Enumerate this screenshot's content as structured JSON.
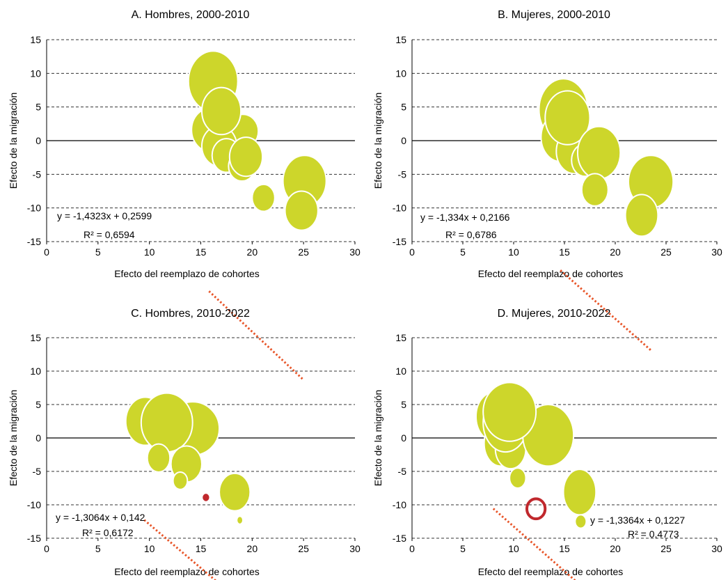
{
  "colors": {
    "bubble": "#cdd62b",
    "bubble_outline": "#ffffff",
    "trend": "#e8562a",
    "highlight": "#c0282d",
    "grid": "#333333",
    "zero_line": "#000000"
  },
  "chart_data": [
    {
      "type": "scatter",
      "title": "A. Hombres, 2000-2010",
      "xlabel": "Efecto del reemplazo de cohortes",
      "ylabel": "Efecto de la migración",
      "xlim": [
        0,
        30
      ],
      "ylim": [
        -15,
        15
      ],
      "xticks": [
        "0",
        "5",
        "10",
        "15",
        "20",
        "25",
        "30"
      ],
      "yticks": [
        "15",
        "10",
        "5",
        "0",
        "-5",
        "-10",
        "-15"
      ],
      "grid": "horizontal dashed",
      "equation": "y = -1,4323x + 0,2599",
      "r2": "R² = 0,6594",
      "trendline": {
        "slope": -1.4323,
        "intercept": 0.2599,
        "x_from": 15.8,
        "x_to": 24.9
      },
      "points": [
        {
          "x": 16.2,
          "y": 8.8,
          "rx": 2.4,
          "ry": 4.5,
          "style": "bubble"
        },
        {
          "x": 15.9,
          "y": 1.6,
          "rx": 1.8,
          "ry": 3.2,
          "style": "bubble"
        },
        {
          "x": 19.1,
          "y": 1.4,
          "rx": 1.5,
          "ry": 2.5,
          "style": "bubble"
        },
        {
          "x": 16.8,
          "y": -0.8,
          "rx": 1.7,
          "ry": 3.0,
          "style": "bubble"
        },
        {
          "x": 17.5,
          "y": -2.2,
          "rx": 1.4,
          "ry": 2.5,
          "style": "bubble"
        },
        {
          "x": 19.0,
          "y": -3.8,
          "rx": 1.3,
          "ry": 2.2,
          "style": "bubble"
        },
        {
          "x": 17.0,
          "y": 4.4,
          "rx": 1.9,
          "ry": 3.5,
          "style": "bubble"
        },
        {
          "x": 19.4,
          "y": -2.4,
          "rx": 1.6,
          "ry": 2.9,
          "style": "bubble"
        },
        {
          "x": 21.1,
          "y": -8.5,
          "rx": 1.1,
          "ry": 2.0,
          "style": "bubble"
        },
        {
          "x": 25.1,
          "y": -6.0,
          "rx": 2.1,
          "ry": 3.8,
          "style": "bubble"
        },
        {
          "x": 24.8,
          "y": -10.4,
          "rx": 1.6,
          "ry": 2.9,
          "style": "bubble"
        }
      ]
    },
    {
      "type": "scatter",
      "title": "B. Mujeres, 2000-2010",
      "xlabel": "Efecto del reemplazo de cohortes",
      "ylabel": "Efecto de la migración",
      "xlim": [
        0,
        30
      ],
      "ylim": [
        -15,
        15
      ],
      "xticks": [
        "0",
        "5",
        "10",
        "15",
        "20",
        "25",
        "30"
      ],
      "yticks": [
        "15",
        "10",
        "5",
        "0",
        "-5",
        "-10",
        "-15"
      ],
      "grid": "horizontal dashed",
      "equation": "y = -1,334x + 0,2166",
      "r2": "R² = 0,6786",
      "trendline": {
        "slope": -1.334,
        "intercept": 0.2166,
        "x_from": 14.6,
        "x_to": 23.6
      },
      "points": [
        {
          "x": 14.9,
          "y": 4.6,
          "rx": 2.4,
          "ry": 4.6,
          "style": "bubble"
        },
        {
          "x": 14.6,
          "y": 0.5,
          "rx": 1.9,
          "ry": 3.6,
          "style": "bubble"
        },
        {
          "x": 16.0,
          "y": -1.6,
          "rx": 1.8,
          "ry": 3.3,
          "style": "bubble"
        },
        {
          "x": 17.0,
          "y": -2.9,
          "rx": 1.3,
          "ry": 2.4,
          "style": "bubble"
        },
        {
          "x": 15.3,
          "y": 3.4,
          "rx": 2.2,
          "ry": 4.0,
          "style": "bubble"
        },
        {
          "x": 18.4,
          "y": -1.8,
          "rx": 2.1,
          "ry": 3.9,
          "style": "bubble"
        },
        {
          "x": 18.0,
          "y": -7.3,
          "rx": 1.3,
          "ry": 2.4,
          "style": "bubble"
        },
        {
          "x": 23.5,
          "y": -6.1,
          "rx": 2.2,
          "ry": 3.9,
          "style": "bubble"
        },
        {
          "x": 22.6,
          "y": -11.1,
          "rx": 1.6,
          "ry": 3.1,
          "style": "bubble"
        }
      ]
    },
    {
      "type": "scatter",
      "title": "C. Hombres, 2010-2022",
      "xlabel": "Efecto del reemplazo de cohortes",
      "ylabel": "Efecto de la migración",
      "xlim": [
        0,
        30
      ],
      "ylim": [
        -15,
        15
      ],
      "xticks": [
        "0",
        "5",
        "10",
        "15",
        "20",
        "25",
        "30"
      ],
      "yticks": [
        "15",
        "10",
        "5",
        "0",
        "-5",
        "-10",
        "-15"
      ],
      "grid": "horizontal dashed",
      "equation": "y = -1,3064x + 0,142",
      "r2": "R² = 0,6172",
      "trendline": {
        "slope": -1.3064,
        "intercept": 0.142,
        "x_from": 9.5,
        "x_to": 18.7
      },
      "points": [
        {
          "x": 9.6,
          "y": 2.5,
          "rx": 1.9,
          "ry": 3.6,
          "style": "bubble"
        },
        {
          "x": 14.2,
          "y": 1.4,
          "rx": 2.6,
          "ry": 4.0,
          "style": "bubble"
        },
        {
          "x": 11.7,
          "y": 2.3,
          "rx": 2.5,
          "ry": 4.4,
          "style": "bubble"
        },
        {
          "x": 10.9,
          "y": -3.0,
          "rx": 1.1,
          "ry": 2.1,
          "style": "bubble"
        },
        {
          "x": 13.6,
          "y": -3.9,
          "rx": 1.5,
          "ry": 2.7,
          "style": "bubble"
        },
        {
          "x": 13.0,
          "y": -6.4,
          "rx": 0.7,
          "ry": 1.3,
          "style": "bubble"
        },
        {
          "x": 15.5,
          "y": -8.9,
          "rx": 0.35,
          "ry": 0.6,
          "style": "highlight"
        },
        {
          "x": 18.3,
          "y": -8.1,
          "rx": 1.5,
          "ry": 2.8,
          "style": "bubble"
        },
        {
          "x": 18.8,
          "y": -12.3,
          "rx": 0.3,
          "ry": 0.6,
          "style": "bubble"
        }
      ]
    },
    {
      "type": "scatter",
      "title": "D. Mujeres, 2010-2022",
      "xlabel": "Efecto del reemplazo de cohortes",
      "ylabel": "Efecto de la migración",
      "xlim": [
        0,
        30
      ],
      "ylim": [
        -15,
        15
      ],
      "xticks": [
        "0",
        "5",
        "10",
        "15",
        "20",
        "25",
        "30"
      ],
      "yticks": [
        "15",
        "10",
        "5",
        "0",
        "-5",
        "-10",
        "-15"
      ],
      "grid": "horizontal dashed",
      "equation": "y = -1,3364x + 0,1227",
      "r2": "R² = 0,4773",
      "trendline": {
        "slope": -1.3364,
        "intercept": 0.1227,
        "x_from": 8.0,
        "x_to": 16.4
      },
      "points": [
        {
          "x": 8.0,
          "y": 3.2,
          "rx": 1.7,
          "ry": 3.6,
          "style": "bubble"
        },
        {
          "x": 8.7,
          "y": -0.8,
          "rx": 1.6,
          "ry": 3.4,
          "style": "bubble"
        },
        {
          "x": 9.7,
          "y": -1.6,
          "rx": 1.5,
          "ry": 3.0,
          "style": "bubble"
        },
        {
          "x": 9.2,
          "y": 2.3,
          "rx": 2.2,
          "ry": 4.4,
          "style": "bubble"
        },
        {
          "x": 13.4,
          "y": 0.4,
          "rx": 2.5,
          "ry": 4.6,
          "style": "bubble"
        },
        {
          "x": 9.6,
          "y": 3.9,
          "rx": 2.6,
          "ry": 4.4,
          "style": "bubble"
        },
        {
          "x": 10.4,
          "y": -6.0,
          "rx": 0.8,
          "ry": 1.5,
          "style": "bubble"
        },
        {
          "x": 12.2,
          "y": -10.6,
          "rx": 0.9,
          "ry": 1.5,
          "style": "ring"
        },
        {
          "x": 16.5,
          "y": -8.1,
          "rx": 1.6,
          "ry": 3.4,
          "style": "bubble"
        },
        {
          "x": 16.6,
          "y": -12.5,
          "rx": 0.55,
          "ry": 1.0,
          "style": "bubble"
        }
      ]
    }
  ]
}
